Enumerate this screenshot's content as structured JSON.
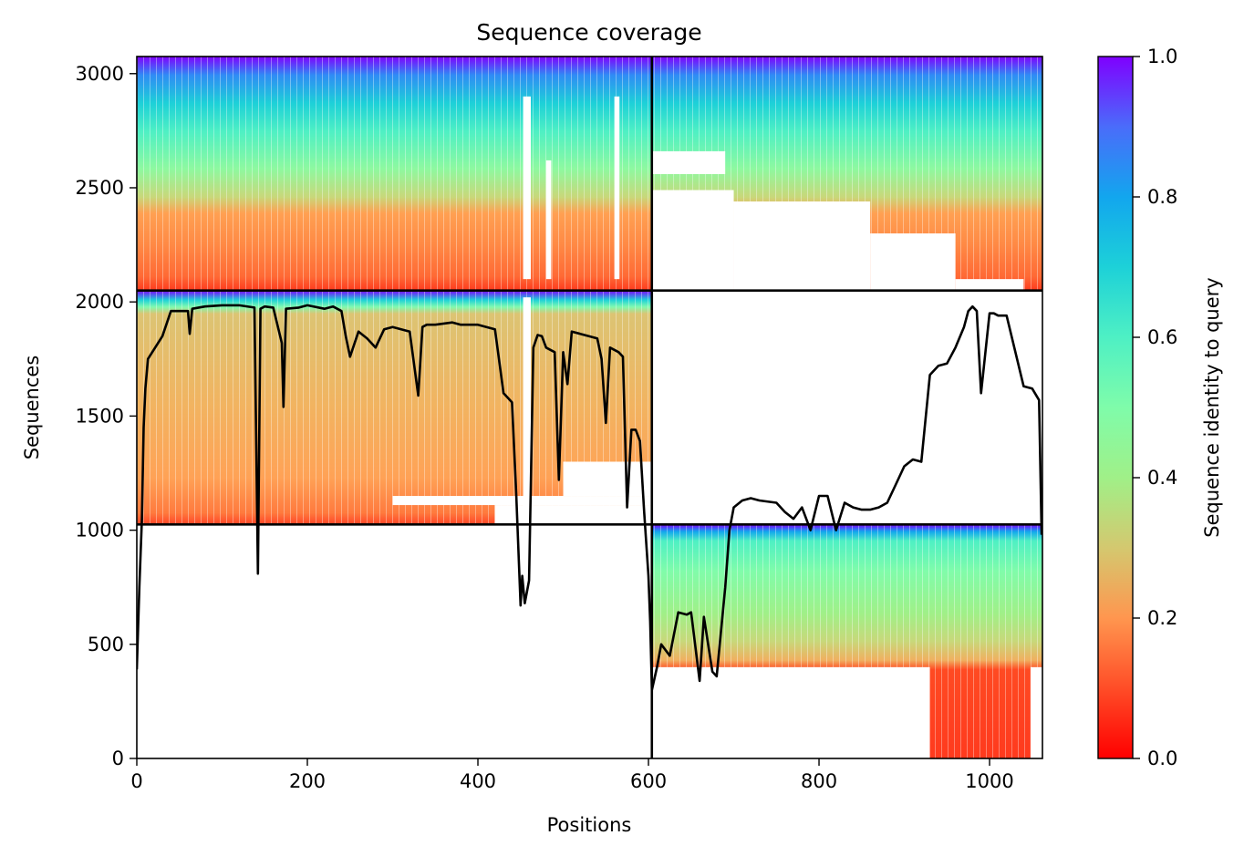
{
  "chart_data": {
    "type": "heatmap",
    "title": "Sequence coverage",
    "xlabel": "Positions",
    "ylabel": "Sequences",
    "xlim": [
      0,
      1062
    ],
    "ylim": [
      0,
      3075
    ],
    "x_ticks": [
      0,
      200,
      400,
      600,
      800,
      1000
    ],
    "y_ticks": [
      0,
      500,
      1000,
      1500,
      2000,
      2500,
      3000
    ],
    "colorbar": {
      "label": "Sequence identity to query",
      "range": [
        0.0,
        1.0
      ],
      "ticks": [
        "0.0",
        "0.2",
        "0.4",
        "0.6",
        "0.8",
        "1.0"
      ],
      "colormap": "rainbow_r"
    },
    "grid": false,
    "legend": "none",
    "chain_boundaries": {
      "x": [
        604
      ],
      "y": [
        1025,
        2050
      ]
    },
    "coverage_blocks": [
      {
        "name": "block-bottom-right",
        "x_range": [
          604,
          1062
        ],
        "y_range": [
          0,
          1025
        ],
        "identity_low": 0.1,
        "identity_high": 1.0
      },
      {
        "name": "block-middle-left",
        "x_range": [
          0,
          604
        ],
        "y_range": [
          1025,
          2050
        ],
        "identity_low": 0.12,
        "identity_high": 1.0
      },
      {
        "name": "block-top-full",
        "x_range": [
          0,
          1062
        ],
        "y_range": [
          2050,
          3075
        ],
        "identity_low": 0.12,
        "identity_high": 1.0
      }
    ],
    "coverage_line": {
      "x": [
        0,
        3,
        6,
        8,
        10,
        13,
        30,
        40,
        60,
        62,
        65,
        80,
        100,
        120,
        138,
        142,
        145,
        150,
        160,
        170,
        172,
        175,
        190,
        200,
        220,
        230,
        240,
        245,
        250,
        260,
        270,
        280,
        290,
        300,
        320,
        330,
        335,
        340,
        350,
        370,
        380,
        400,
        420,
        430,
        440,
        445,
        450,
        452,
        455,
        460,
        465,
        470,
        475,
        480,
        490,
        495,
        500,
        505,
        510,
        520,
        530,
        540,
        545,
        550,
        555,
        560,
        565,
        570,
        575,
        580,
        585,
        590,
        595,
        600,
        602,
        604,
        610,
        615,
        625,
        635,
        645,
        650,
        660,
        665,
        675,
        680,
        690,
        695,
        700,
        710,
        720,
        730,
        750,
        760,
        770,
        780,
        790,
        800,
        810,
        820,
        830,
        840,
        850,
        860,
        870,
        880,
        890,
        900,
        910,
        920,
        930,
        940,
        950,
        960,
        970,
        975,
        980,
        985,
        990,
        1000,
        1005,
        1010,
        1020,
        1040,
        1050,
        1058,
        1061
      ],
      "y": [
        390,
        750,
        1050,
        1450,
        1620,
        1750,
        1850,
        1960,
        1960,
        1860,
        1970,
        1980,
        1985,
        1985,
        1975,
        810,
        1970,
        1980,
        1975,
        1820,
        1540,
        1970,
        1975,
        1985,
        1970,
        1980,
        1960,
        1850,
        1760,
        1870,
        1840,
        1800,
        1880,
        1890,
        1870,
        1590,
        1890,
        1900,
        1900,
        1910,
        1900,
        1900,
        1880,
        1600,
        1560,
        1150,
        670,
        800,
        680,
        780,
        1800,
        1855,
        1850,
        1800,
        1780,
        1220,
        1780,
        1640,
        1870,
        1860,
        1850,
        1840,
        1750,
        1470,
        1800,
        1790,
        1780,
        1760,
        1100,
        1440,
        1440,
        1390,
        1080,
        800,
        600,
        300,
        400,
        500,
        450,
        640,
        630,
        640,
        340,
        620,
        380,
        360,
        750,
        1000,
        1100,
        1130,
        1140,
        1130,
        1120,
        1080,
        1050,
        1100,
        1000,
        1150,
        1150,
        1000,
        1120,
        1100,
        1090,
        1090,
        1100,
        1120,
        1200,
        1280,
        1310,
        1300,
        1680,
        1720,
        1730,
        1800,
        1890,
        1960,
        1980,
        1960,
        1600,
        1950,
        1950,
        1940,
        1940,
        1630,
        1620,
        1570,
        980
      ]
    }
  }
}
